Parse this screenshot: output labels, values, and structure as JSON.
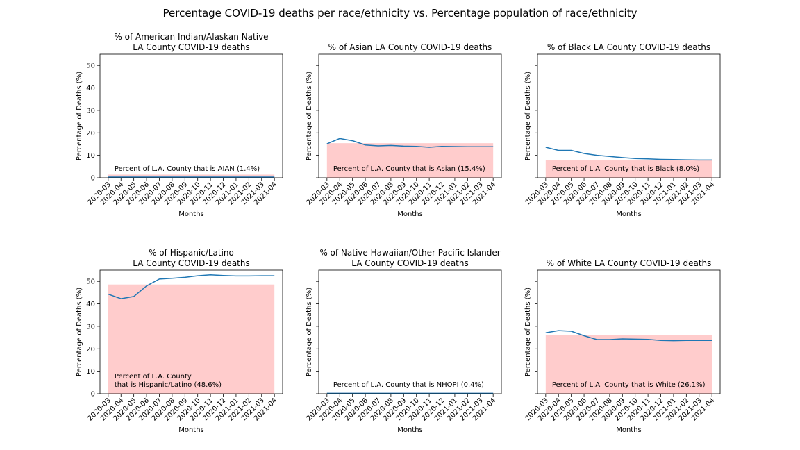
{
  "figure": {
    "title": "Percentage COVID-19 deaths per race/ethnicity vs. Percentage population of race/ethnicity"
  },
  "chart_data": [
    {
      "type": "line",
      "title": "% of American Indian/Alaskan Native\nLA County COVID-19 deaths",
      "xlabel": "Months",
      "ylabel": "Percentage of Deaths (%)",
      "ylim": [
        0,
        55
      ],
      "yticks": [
        0,
        10,
        20,
        30,
        40,
        50
      ],
      "show_ytick_labels": true,
      "categories": [
        "2020-03",
        "2020-04",
        "2020-05",
        "2020-06",
        "2020-07",
        "2020-08",
        "2020-09",
        "2020-10",
        "2020-11",
        "2020-12",
        "2021-01",
        "2021-02",
        "2021-03",
        "2021-04"
      ],
      "series": [
        {
          "values": [
            0.3,
            0.3,
            0.3,
            0.3,
            0.3,
            0.3,
            0.3,
            0.3,
            0.3,
            0.3,
            0.3,
            0.3,
            0.3,
            0.3
          ],
          "color": "#1f77b4"
        }
      ],
      "population_band": {
        "value": 1.4,
        "color": "#ffcccc",
        "label": "Percent of L.A. County that is AIAN (1.4%)"
      }
    },
    {
      "type": "line",
      "title": "% of Asian LA County COVID-19 deaths",
      "xlabel": "Months",
      "ylabel": "Percentage of Deaths (%)",
      "ylim": [
        0,
        55
      ],
      "yticks": [
        0,
        10,
        20,
        30,
        40,
        50
      ],
      "show_ytick_labels": false,
      "categories": [
        "2020-03",
        "2020-04",
        "2020-05",
        "2020-06",
        "2020-07",
        "2020-08",
        "2020-09",
        "2020-10",
        "2020-11",
        "2020-12",
        "2021-01",
        "2021-02",
        "2021-03",
        "2021-04"
      ],
      "series": [
        {
          "values": [
            15.1,
            17.5,
            16.5,
            14.6,
            14.2,
            14.4,
            14.1,
            14.0,
            13.6,
            14.0,
            13.9,
            13.8,
            13.8,
            13.8
          ],
          "color": "#1f77b4"
        }
      ],
      "population_band": {
        "value": 15.4,
        "color": "#ffcccc",
        "label": "Percent of L.A. County that is Asian (15.4%)"
      }
    },
    {
      "type": "line",
      "title": "% of Black LA County COVID-19 deaths",
      "xlabel": "Months",
      "ylabel": "Percentage of Deaths (%)",
      "ylim": [
        0,
        55
      ],
      "yticks": [
        0,
        10,
        20,
        30,
        40,
        50
      ],
      "show_ytick_labels": false,
      "categories": [
        "2020-03",
        "2020-04",
        "2020-05",
        "2020-06",
        "2020-07",
        "2020-08",
        "2020-09",
        "2020-10",
        "2020-11",
        "2020-12",
        "2021-01",
        "2021-02",
        "2021-03",
        "2021-04"
      ],
      "series": [
        {
          "values": [
            13.6,
            12.2,
            12.2,
            10.8,
            10.0,
            9.5,
            9.0,
            8.6,
            8.4,
            8.2,
            8.1,
            8.0,
            7.9,
            7.9
          ],
          "color": "#1f77b4"
        }
      ],
      "population_band": {
        "value": 8.0,
        "color": "#ffcccc",
        "label": "Percent of L.A. County that is Black (8.0%)"
      }
    },
    {
      "type": "line",
      "title": "% of Hispanic/Latino\nLA County COVID-19 deaths",
      "xlabel": "Months",
      "ylabel": "Percentage of Deaths (%)",
      "ylim": [
        0,
        55
      ],
      "yticks": [
        0,
        10,
        20,
        30,
        40,
        50
      ],
      "show_ytick_labels": true,
      "categories": [
        "2020-03",
        "2020-04",
        "2020-05",
        "2020-06",
        "2020-07",
        "2020-08",
        "2020-09",
        "2020-10",
        "2020-11",
        "2020-12",
        "2021-01",
        "2021-02",
        "2021-03",
        "2021-04"
      ],
      "series": [
        {
          "values": [
            44.3,
            42.3,
            43.3,
            48.0,
            51.0,
            51.4,
            51.8,
            52.5,
            52.9,
            52.6,
            52.4,
            52.4,
            52.5,
            52.5
          ],
          "color": "#1f77b4"
        }
      ],
      "population_band": {
        "value": 48.6,
        "color": "#ffcccc",
        "label": "Percent of L.A. County\nthat is Hispanic/Latino (48.6%)"
      }
    },
    {
      "type": "line",
      "title": "% of Native Hawaiian/Other Pacific Islander\nLA County COVID-19 deaths",
      "xlabel": "Months",
      "ylabel": "Percentage of Deaths (%)",
      "ylim": [
        0,
        55
      ],
      "yticks": [
        0,
        10,
        20,
        30,
        40,
        50
      ],
      "show_ytick_labels": false,
      "categories": [
        "2020-03",
        "2020-04",
        "2020-05",
        "2020-06",
        "2020-07",
        "2020-08",
        "2020-09",
        "2020-10",
        "2020-11",
        "2020-12",
        "2021-01",
        "2021-02",
        "2021-03",
        "2021-04"
      ],
      "series": [
        {
          "values": [
            0.2,
            0.2,
            0.2,
            0.2,
            0.2,
            0.2,
            0.2,
            0.2,
            0.2,
            0.2,
            0.2,
            0.2,
            0.2,
            0.2
          ],
          "color": "#1f77b4"
        }
      ],
      "population_band": {
        "value": 0.4,
        "color": "#ffcccc",
        "label": "Percent of L.A. County that is NHOPI (0.4%)"
      }
    },
    {
      "type": "line",
      "title": "% of White LA County COVID-19 deaths",
      "xlabel": "Months",
      "ylabel": "Percentage of Deaths (%)",
      "ylim": [
        0,
        55
      ],
      "yticks": [
        0,
        10,
        20,
        30,
        40,
        50
      ],
      "show_ytick_labels": false,
      "categories": [
        "2020-03",
        "2020-04",
        "2020-05",
        "2020-06",
        "2020-07",
        "2020-08",
        "2020-09",
        "2020-10",
        "2020-11",
        "2020-12",
        "2021-01",
        "2021-02",
        "2021-03",
        "2021-04"
      ],
      "series": [
        {
          "values": [
            27.1,
            28.1,
            27.8,
            25.8,
            24.1,
            24.1,
            24.4,
            24.3,
            24.2,
            23.7,
            23.6,
            23.7,
            23.7,
            23.7
          ],
          "color": "#1f77b4"
        }
      ],
      "population_band": {
        "value": 26.1,
        "color": "#ffcccc",
        "label": "Percent of L.A. County that is White (26.1%)"
      }
    }
  ]
}
